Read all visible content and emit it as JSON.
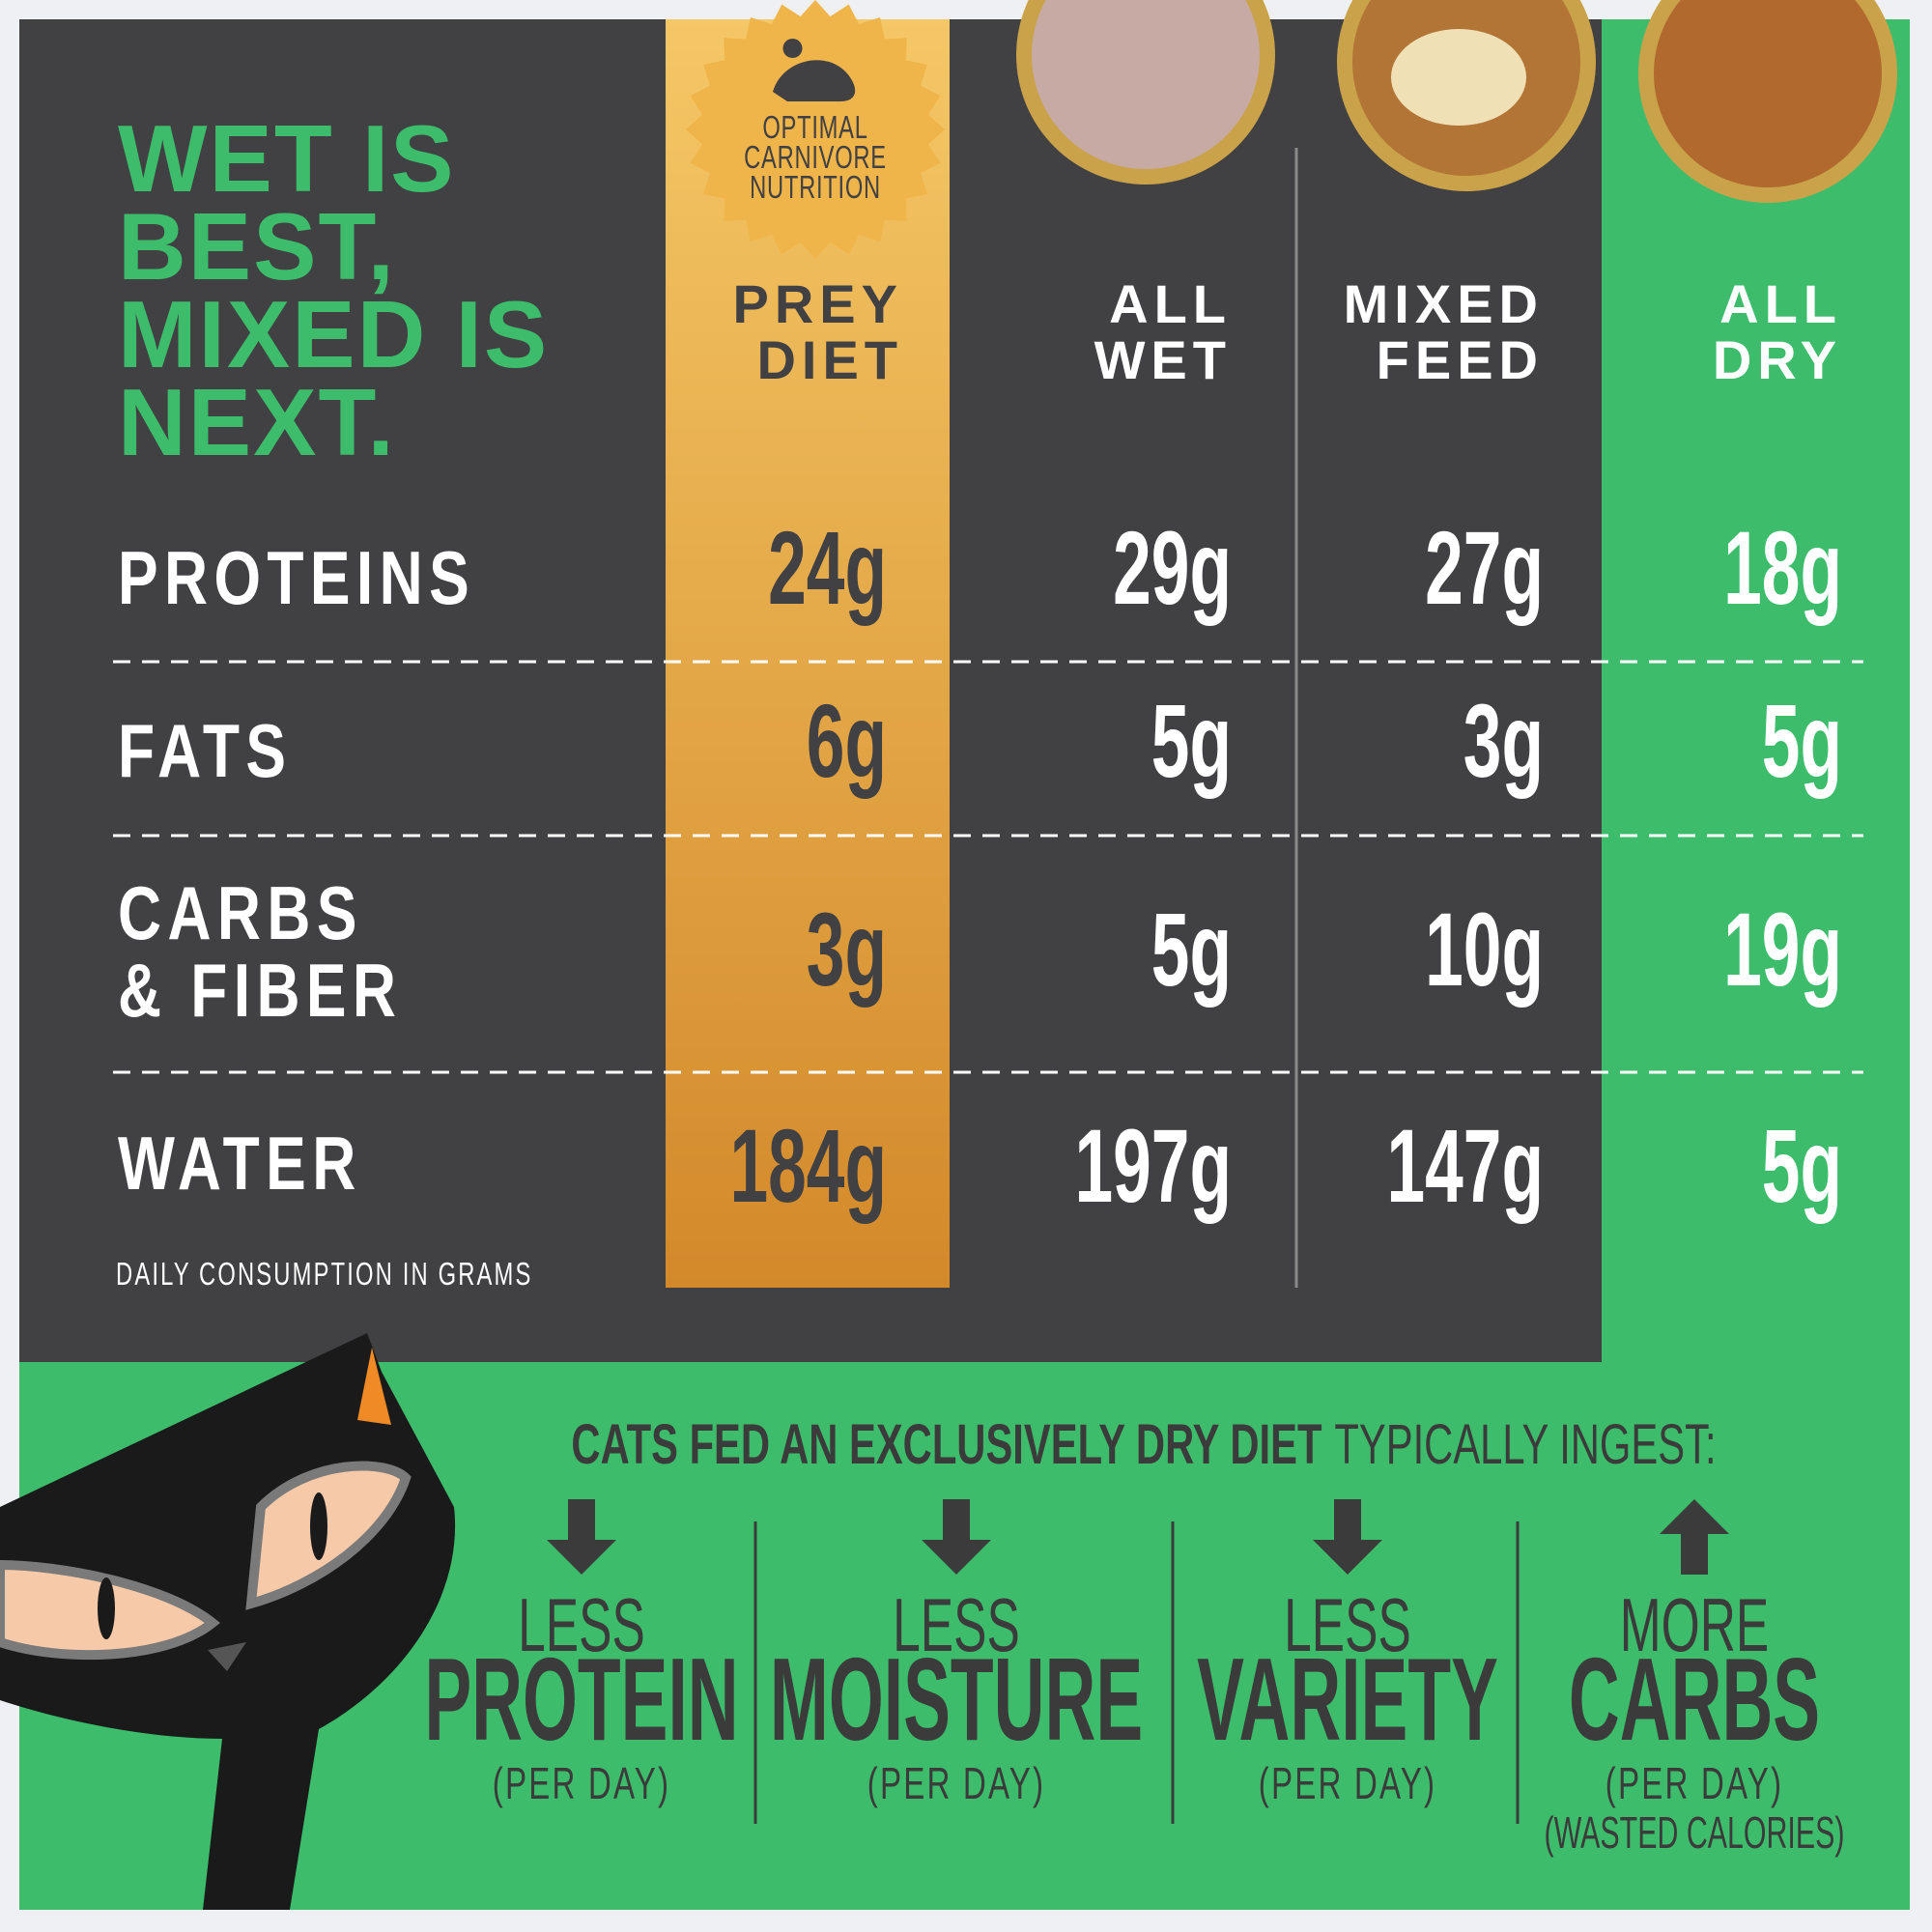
{
  "title": {
    "lines": [
      "WET IS",
      "BEST,",
      "MIXED IS",
      "NEXT."
    ]
  },
  "badge": {
    "lines": [
      "OPTIMAL",
      "CARNIVORE",
      "NUTRITION"
    ]
  },
  "table": {
    "columns": [
      [
        "PREY",
        "DIET"
      ],
      [
        "ALL",
        "WET"
      ],
      [
        "MIXED",
        "FEED"
      ],
      [
        "ALL",
        "DRY"
      ]
    ],
    "rows": [
      {
        "label": [
          "PROTEINS"
        ],
        "values": [
          "24g",
          "29g",
          "27g",
          "18g"
        ]
      },
      {
        "label": [
          "FATS"
        ],
        "values": [
          "6g",
          "5g",
          "3g",
          "5g"
        ]
      },
      {
        "label": [
          "CARBS",
          "& FIBER"
        ],
        "values": [
          "3g",
          "5g",
          "10g",
          "19g"
        ]
      },
      {
        "label": [
          "WATER"
        ],
        "values": [
          "184g",
          "197g",
          "147g",
          "5g"
        ]
      }
    ],
    "footnote": "DAILY CONSUMPTION IN GRAMS"
  },
  "summary": {
    "headline_bold": "CATS FED AN EXCLUSIVELY DRY DIET",
    "headline_rest": "TYPICALLY INGEST:",
    "items": [
      {
        "small": "LESS",
        "big": "PROTEIN",
        "note": "(PER DAY)"
      },
      {
        "small": "LESS",
        "big": "MOISTURE",
        "note": "(PER DAY)"
      },
      {
        "small": "LESS",
        "big": "VARIETY",
        "note": "(PER DAY)"
      },
      {
        "small": "MORE",
        "big": "CARBS",
        "note": "(PER DAY)",
        "extra": "(WASTED CALORIES)"
      }
    ]
  }
}
